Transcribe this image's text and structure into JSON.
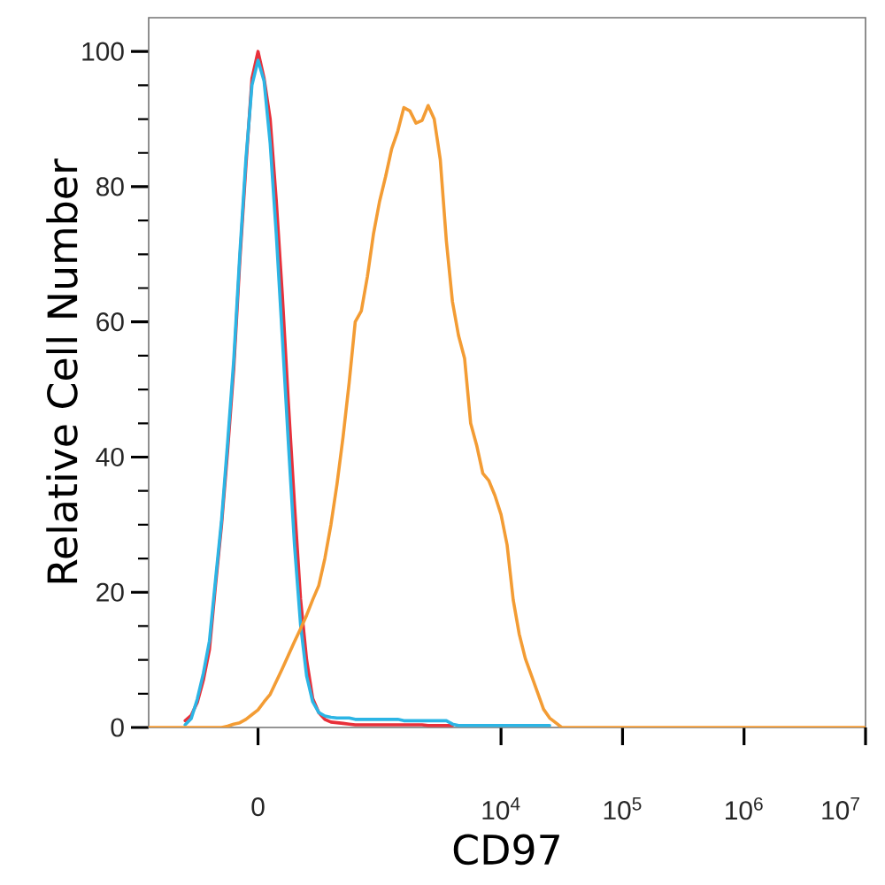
{
  "chart_data": {
    "type": "line",
    "xlabel": "CD97",
    "ylabel": "Relative Cell Number",
    "categories": [
      null,
      null,
      null,
      null,
      null,
      null,
      null,
      null,
      null,
      null,
      null,
      null,
      null,
      null,
      null,
      null,
      null,
      null,
      "0",
      null,
      null,
      null,
      null,
      null,
      null,
      null,
      null,
      null,
      null,
      null,
      null,
      null,
      null,
      null,
      null,
      null,
      null,
      null,
      null,
      null,
      null,
      null,
      null,
      null,
      null,
      null,
      null,
      null,
      null,
      null,
      null,
      null,
      null,
      null,
      null,
      null,
      null,
      null,
      "10$^{4}$",
      null,
      null,
      null,
      null,
      null,
      null,
      null,
      null,
      null,
      null,
      null,
      null,
      null,
      null,
      null,
      null,
      null,
      null,
      null,
      "10$^{5}$",
      null,
      null,
      null,
      null,
      null,
      null,
      null,
      null,
      null,
      null,
      null,
      null,
      null,
      null,
      null,
      null,
      null,
      null,
      null,
      "10$^{6}$",
      null,
      null,
      null,
      null,
      null,
      null,
      null,
      null,
      null,
      null,
      null,
      null,
      null,
      null,
      null,
      null,
      null,
      null,
      null,
      "10$^{7}$"
    ],
    "ylim": [
      0,
      105
    ],
    "yticks": [
      0,
      {
        "value": 5,
        "label": null
      },
      {
        "value": 10,
        "label": null
      },
      {
        "value": 15,
        "label": null
      },
      20,
      {
        "value": 25,
        "label": null
      },
      {
        "value": 30,
        "label": null
      },
      {
        "value": 35,
        "label": null
      },
      40,
      {
        "value": 45,
        "label": null
      },
      {
        "value": 50,
        "label": null
      },
      {
        "value": 55,
        "label": null
      },
      60,
      {
        "value": 65,
        "label": null
      },
      {
        "value": 70,
        "label": null
      },
      {
        "value": 75,
        "label": null
      },
      80,
      {
        "value": 85,
        "label": null
      },
      {
        "value": 90,
        "label": null
      },
      {
        "value": 95,
        "label": null
      },
      100
    ],
    "series": [
      {
        "color": "#e8303a",
        "values": [
          null,
          null,
          null,
          null,
          null,
          null,
          1,
          1.8,
          3.7,
          7,
          11.5,
          21,
          30,
          41,
          53,
          69,
          83,
          96,
          100,
          96,
          90,
          78,
          64,
          48,
          33,
          19,
          10,
          4.3,
          2.2,
          1.2,
          0.8,
          0.7,
          0.6,
          0.5,
          0.4,
          0.4,
          0.4,
          0.4,
          0.4,
          0.4,
          0.4,
          0.4,
          0.4,
          0.4,
          0.4,
          0.4,
          0.3,
          0.3,
          0.3,
          0.3,
          0.3,
          null,
          null,
          null,
          null,
          null,
          null,
          null,
          null,
          null,
          null,
          null,
          null,
          null,
          null,
          null,
          null,
          null,
          null,
          null,
          null,
          null,
          null,
          null,
          null,
          null,
          null,
          null,
          null,
          null,
          null,
          null,
          null,
          null,
          null,
          null,
          null,
          null,
          null,
          null,
          null,
          null,
          null,
          null,
          null,
          null,
          null,
          null,
          null,
          null,
          null,
          null,
          null,
          null,
          null,
          null,
          null,
          null,
          null,
          null,
          null,
          null,
          null,
          null,
          null,
          null,
          null,
          null,
          null
        ]
      },
      {
        "color": "#2cb5e5",
        "values": [
          null,
          null,
          null,
          null,
          null,
          null,
          0.4,
          1.3,
          4.2,
          8,
          12.8,
          21.8,
          30.7,
          42.2,
          54.3,
          70,
          84,
          95,
          98.7,
          95.6,
          86.4,
          73,
          57.7,
          42,
          27,
          15.2,
          7.6,
          3.8,
          2.2,
          1.7,
          1.5,
          1.4,
          1.4,
          1.4,
          1.2,
          1.2,
          1.2,
          1.2,
          1.2,
          1.2,
          1.2,
          1.2,
          1,
          1,
          1,
          1,
          1,
          1,
          1,
          1,
          0.5,
          0.3,
          0.3,
          0.3,
          0.3,
          0.3,
          0.3,
          0.3,
          0.3,
          0.3,
          0.3,
          0.3,
          0.3,
          0.3,
          0.3,
          0.3,
          0.3,
          null,
          null,
          null,
          null,
          null,
          null,
          null,
          null,
          null,
          null,
          null,
          null,
          null,
          null,
          null,
          null,
          null,
          null,
          null,
          null,
          null,
          null,
          null,
          null,
          null,
          null,
          null,
          null,
          null,
          null,
          null,
          null,
          null,
          null,
          null,
          null,
          null,
          null,
          null,
          null,
          null,
          null,
          null,
          null,
          null,
          null,
          null,
          null,
          null,
          null,
          null,
          null
        ]
      },
      {
        "color": "#f39c34",
        "values": [
          0,
          0,
          0,
          0,
          0,
          0,
          0,
          0,
          0,
          0,
          0,
          0,
          0,
          0.2,
          0.5,
          0.7,
          1.2,
          1.9,
          2.6,
          3.8,
          4.9,
          6.8,
          8.7,
          10.7,
          12.7,
          14.6,
          16.6,
          18.9,
          21,
          25,
          30,
          36,
          43,
          51,
          60,
          61.6,
          66.7,
          73,
          77.8,
          81.5,
          85.6,
          88.2,
          91.7,
          91.2,
          89.4,
          89.8,
          92,
          90,
          84,
          72,
          63,
          58,
          54.6,
          45,
          41.7,
          37.6,
          36.5,
          34.3,
          31.5,
          27,
          18.9,
          13.8,
          10.2,
          7.7,
          5.2,
          2.7,
          1.4,
          0.7,
          0,
          0,
          0,
          0,
          0,
          0,
          0,
          0,
          0,
          0,
          0,
          0,
          0,
          0,
          0,
          0,
          0,
          0,
          0,
          0,
          0,
          0,
          0,
          0,
          0,
          0,
          0,
          0,
          0,
          0,
          0,
          0,
          0,
          0,
          0,
          0,
          0,
          0,
          0,
          0,
          0,
          0,
          0,
          0,
          0,
          0,
          0,
          0,
          0,
          0,
          0
        ]
      }
    ]
  }
}
